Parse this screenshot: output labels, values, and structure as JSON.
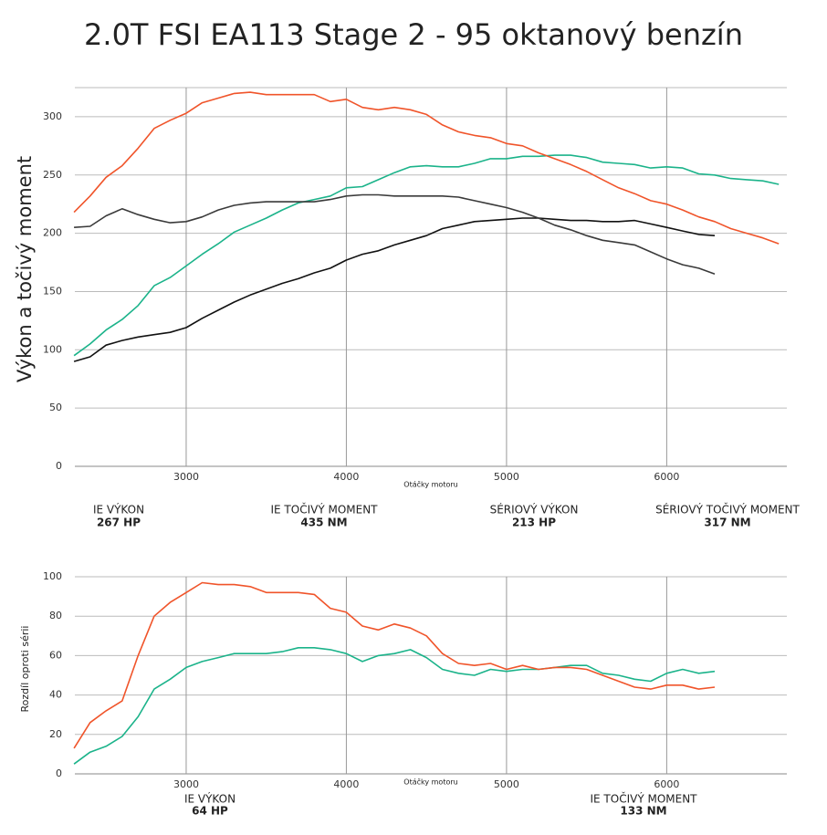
{
  "title": "2.0T FSI EA113 Stage 2 - 95 oktanový benzín",
  "chart_data": [
    {
      "type": "line",
      "ylabel": "Výkon a točivý moment",
      "xlabel": "Otáčky motoru",
      "xlim": [
        2305,
        6750
      ],
      "xticks": [
        3000,
        4000,
        5000,
        6000
      ],
      "ylim": [
        0,
        325
      ],
      "yticks": [
        0,
        50,
        100,
        150,
        200,
        250,
        300
      ],
      "grid": true,
      "x": [
        2300,
        2400,
        2500,
        2600,
        2700,
        2800,
        2900,
        3000,
        3100,
        3200,
        3300,
        3400,
        3500,
        3600,
        3700,
        3800,
        3900,
        4000,
        4100,
        4200,
        4300,
        4400,
        4500,
        4600,
        4700,
        4800,
        4900,
        5000,
        5100,
        5200,
        5300,
        5400,
        5500,
        5600,
        5700,
        5800,
        5900,
        6000,
        6100,
        6200,
        6300,
        6400,
        6500,
        6600,
        6700
      ],
      "series": [
        {
          "name": "IE VÝKON",
          "summary": "267 HP",
          "color": "#1bb38a",
          "values": [
            95,
            105,
            117,
            126,
            138,
            155,
            162,
            172,
            182,
            191,
            201,
            207,
            213,
            220,
            226,
            229,
            232,
            239,
            240,
            246,
            252,
            257,
            258,
            257,
            257,
            260,
            264,
            264,
            266,
            266,
            267,
            267,
            265,
            261,
            260,
            259,
            256,
            257,
            256,
            251,
            250,
            247,
            246,
            245,
            242
          ]
        },
        {
          "name": "IE TOČIVÝ MOMENT",
          "summary": "435 NM",
          "color": "#f0542a",
          "values": [
            218,
            232,
            248,
            258,
            273,
            290,
            297,
            303,
            312,
            316,
            320,
            321,
            319,
            319,
            319,
            319,
            313,
            315,
            308,
            306,
            308,
            306,
            302,
            293,
            287,
            284,
            282,
            277,
            275,
            269,
            264,
            259,
            253,
            246,
            239,
            234,
            228,
            225,
            220,
            214,
            210,
            204,
            200,
            196,
            191
          ]
        },
        {
          "name": "SÉRIOVÝ VÝKON",
          "summary": "213 HP",
          "color": "#111111",
          "values": [
            90,
            94,
            104,
            108,
            111,
            113,
            115,
            119,
            127,
            134,
            141,
            147,
            152,
            157,
            161,
            166,
            170,
            177,
            182,
            185,
            190,
            194,
            198,
            204,
            207,
            210,
            211,
            212,
            213,
            213,
            212,
            211,
            211,
            210,
            210,
            211,
            208,
            205,
            202,
            199,
            198,
            null,
            null,
            null,
            null
          ]
        },
        {
          "name": "SÉRIOVÝ TOČIVÝ MOMENT",
          "summary": "317 NM",
          "color": "#3a3a3a",
          "values": [
            205,
            206,
            215,
            221,
            216,
            212,
            209,
            210,
            214,
            220,
            224,
            226,
            227,
            227,
            227,
            227,
            229,
            232,
            233,
            233,
            232,
            232,
            232,
            232,
            231,
            228,
            225,
            222,
            218,
            213,
            207,
            203,
            198,
            194,
            192,
            190,
            184,
            178,
            173,
            170,
            165,
            null,
            null,
            null,
            null
          ]
        }
      ]
    },
    {
      "type": "line",
      "ylabel": "Rozdíl oproti sérii",
      "xlabel": "Otáčky motoru",
      "xlim": [
        2305,
        6750
      ],
      "xticks": [
        3000,
        4000,
        5000,
        6000
      ],
      "ylim": [
        0,
        100
      ],
      "yticks": [
        0,
        20,
        40,
        60,
        80,
        100
      ],
      "grid": true,
      "x": [
        2300,
        2400,
        2500,
        2600,
        2700,
        2800,
        2900,
        3000,
        3100,
        3200,
        3300,
        3400,
        3500,
        3600,
        3700,
        3800,
        3900,
        4000,
        4100,
        4200,
        4300,
        4400,
        4500,
        4600,
        4700,
        4800,
        4900,
        5000,
        5100,
        5200,
        5300,
        5400,
        5500,
        5600,
        5700,
        5800,
        5900,
        6000,
        6100,
        6200,
        6300
      ],
      "series": [
        {
          "name": "IE VÝKON",
          "summary": "64 HP",
          "color": "#1bb38a",
          "values": [
            5,
            11,
            14,
            19,
            29,
            43,
            48,
            54,
            57,
            59,
            61,
            61,
            61,
            62,
            64,
            64,
            63,
            61,
            57,
            60,
            61,
            63,
            59,
            53,
            51,
            50,
            53,
            52,
            53,
            53,
            54,
            55,
            55,
            51,
            50,
            48,
            47,
            51,
            53,
            51,
            52
          ]
        },
        {
          "name": "IE TOČIVÝ MOMENT",
          "summary": "133 NM",
          "color": "#f0542a",
          "values": [
            13,
            26,
            32,
            37,
            60,
            80,
            87,
            92,
            97,
            96,
            96,
            95,
            92,
            92,
            92,
            91,
            84,
            82,
            75,
            73,
            76,
            74,
            70,
            61,
            56,
            55,
            56,
            53,
            55,
            53,
            54,
            54,
            53,
            50,
            47,
            44,
            43,
            45,
            45,
            43,
            44
          ]
        }
      ]
    }
  ]
}
